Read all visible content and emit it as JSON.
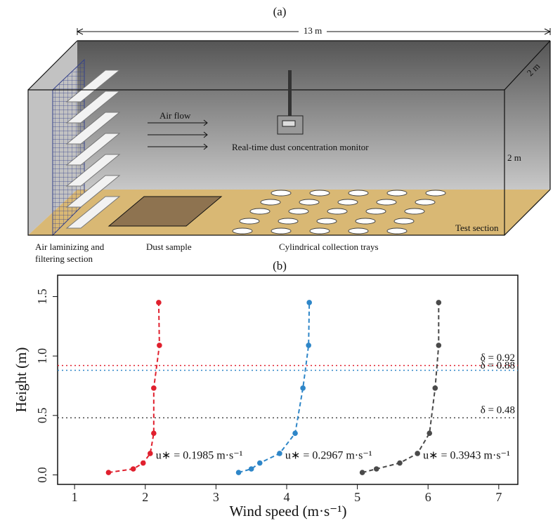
{
  "diagram": {
    "panel_label": "(a)",
    "length": "13 m",
    "depth": "2 m",
    "height": "2 m",
    "air_flow": "Air flow",
    "monitor": "Real-time dust concentration monitor",
    "test_section": "Test section",
    "laminizing_line1": "Air laminizing and",
    "laminizing_line2": "filtering section",
    "dust_sample": "Dust sample",
    "trays": "Cylindrical collection trays"
  },
  "chart_data": {
    "type": "line",
    "panel_label": "(b)",
    "x_label": "Wind speed (m·s⁻¹)",
    "y_label": "Height (m)",
    "xlim": [
      0.76,
      7.27
    ],
    "xticks": [
      1,
      2,
      3,
      4,
      5,
      6,
      7
    ],
    "ylim": [
      -0.08,
      1.68
    ],
    "yticks": [
      {
        "value": 0,
        "label": "0.0"
      },
      0.5,
      {
        "value": 1,
        "label": "1.0"
      },
      1.5
    ],
    "series": [
      {
        "name": "u∗ = 0.1985 m·s⁻¹",
        "color": "#e0202e",
        "x": [
          1.48,
          1.83,
          1.97,
          2.07,
          2.12,
          2.12,
          2.2,
          2.19
        ],
        "values": [
          0.02,
          0.05,
          0.1,
          0.18,
          0.35,
          0.73,
          1.09,
          1.45
        ]
      },
      {
        "name": "u∗ = 0.2967 m·s⁻¹",
        "color": "#2e86c8",
        "x": [
          3.32,
          3.5,
          3.62,
          3.9,
          4.12,
          4.23,
          4.31,
          4.32
        ],
        "values": [
          0.02,
          0.05,
          0.1,
          0.18,
          0.35,
          0.73,
          1.09,
          1.45
        ]
      },
      {
        "name": "u∗ = 0.3943 m·s⁻¹",
        "color": "#4a4a4a",
        "x": [
          5.07,
          5.27,
          5.6,
          5.85,
          6.02,
          6.1,
          6.15,
          6.15
        ],
        "values": [
          0.02,
          0.05,
          0.1,
          0.18,
          0.35,
          0.73,
          1.09,
          1.45
        ]
      }
    ],
    "reference_lines": [
      {
        "value": 0.92,
        "label": "δ = 0.92",
        "color": "#e0202e"
      },
      {
        "value": 0.88,
        "label": "δ = 0.88",
        "color": "#2e86c8"
      },
      {
        "value": 0.48,
        "label": "δ = 0.48",
        "color": "#4a4a4a"
      }
    ]
  }
}
